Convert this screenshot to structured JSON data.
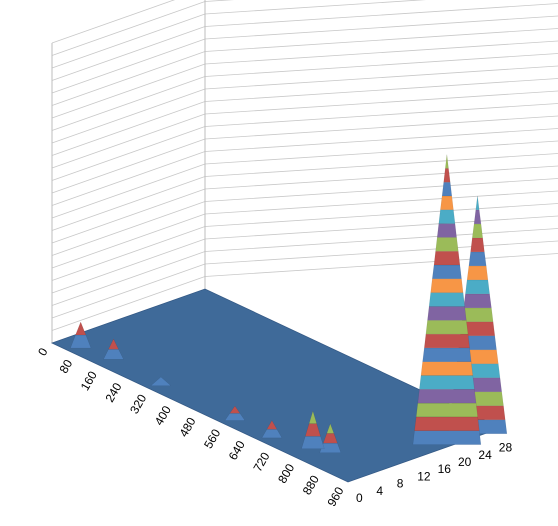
{
  "chart_data": {
    "type": "surface",
    "title": "",
    "grid": true,
    "legend": "none",
    "x_axis": {
      "label": "",
      "ticks": [
        "0",
        "80",
        "160",
        "240",
        "320",
        "400",
        "480",
        "560",
        "640",
        "720",
        "800",
        "880",
        "960"
      ],
      "range": [
        0,
        960
      ]
    },
    "y_axis": {
      "label": "",
      "ticks": [
        "0",
        "4",
        "8",
        "12",
        "16",
        "20",
        "24",
        "28"
      ],
      "range": [
        0,
        30
      ]
    },
    "z_axis": {
      "label": "",
      "ticks": []
    },
    "peaks": [
      {
        "x": 60,
        "y": 2,
        "height": 0.09
      },
      {
        "x": 150,
        "y": 3,
        "height": 0.07
      },
      {
        "x": 320,
        "y": 2,
        "height": 0.03
      },
      {
        "x": 560,
        "y": 2,
        "height": 0.05
      },
      {
        "x": 680,
        "y": 2,
        "height": 0.06
      },
      {
        "x": 780,
        "y": 4,
        "height": 0.13
      },
      {
        "x": 820,
        "y": 5,
        "height": 0.1
      },
      {
        "x": 950,
        "y": 20,
        "height": 1.0
      },
      {
        "x": 950,
        "y": 26,
        "height": 0.82
      }
    ],
    "band_colors": [
      "#4f81bd",
      "#c0504d",
      "#9bbb59",
      "#8064a2",
      "#4bacc6",
      "#f79646"
    ],
    "floor_color": "#3f6a99"
  }
}
